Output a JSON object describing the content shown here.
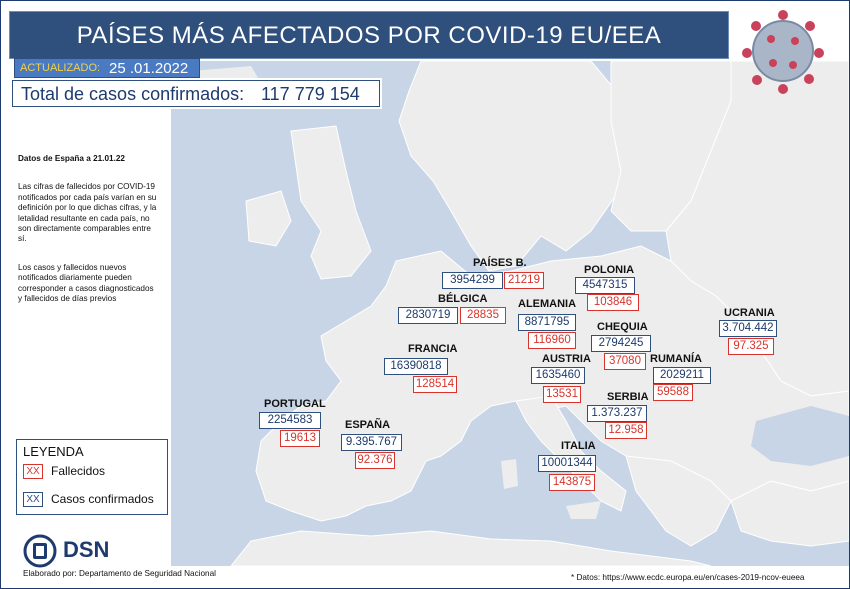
{
  "title": "PAÍSES MÁS AFECTADOS POR COVID-19 EU/EEA",
  "updated": {
    "label": "ACTUALIZADO:",
    "date": "25 .01.2022"
  },
  "total": {
    "label": "Total de casos confirmados:",
    "value": "117 779 154"
  },
  "notes": {
    "spain_date": "Datos de España a 21.01.22",
    "paragraph1": "Las cifras de fallecidos por COVID-19 notificados por cada país varían en su definición por lo que dichas cifras, y la letalidad resultante en cada país, no son directamente comparables entre sí.",
    "paragraph2": "Los casos y fallecidos nuevos notificados diariamente pueden corresponder a casos diagnosticados y fallecidos de días previos"
  },
  "legend": {
    "title": "LEYENDA",
    "deaths": {
      "sample": "XX",
      "label": "Fallecidos"
    },
    "cases": {
      "sample": "XX",
      "label": "Casos confirmados"
    }
  },
  "countries": {
    "paises_bajos": {
      "name": "PAÍSES B.",
      "cases": "3954299",
      "deaths": "21219"
    },
    "polonia": {
      "name": "POLONIA",
      "cases": "4547315",
      "deaths": "103846"
    },
    "belgica": {
      "name": "BÉLGICA",
      "cases": "2830719",
      "deaths": "28835"
    },
    "alemania": {
      "name": "ALEMANIA",
      "cases": "8871795",
      "deaths": "116960"
    },
    "chequia": {
      "name": "CHEQUIA",
      "cases": "2794245",
      "deaths": "37080"
    },
    "ucrania": {
      "name": "UCRANIA",
      "cases": "3.704.442",
      "deaths": "97.325"
    },
    "francia": {
      "name": "FRANCIA",
      "cases": "16390818",
      "deaths": "128514"
    },
    "austria": {
      "name": "AUSTRIA",
      "cases": "1635460",
      "deaths": "13531"
    },
    "rumania": {
      "name": "RUMANÍA",
      "cases": "2029211",
      "deaths": "59588"
    },
    "portugal": {
      "name": "PORTUGAL",
      "cases": "2254583",
      "deaths": "19613"
    },
    "serbia": {
      "name": "SERBIA",
      "cases": "1.373.237",
      "deaths": "12.958"
    },
    "espana": {
      "name": "ESPAÑA",
      "cases": "9.395.767",
      "deaths": "92.376"
    },
    "italia": {
      "name": "ITALIA",
      "cases": "10001344",
      "deaths": "143875"
    }
  },
  "logo": {
    "text": "DSN"
  },
  "credit": "Elaborado por: Departamento de Seguridad Nacional",
  "source": "* Datos: https://www.ecdc.europa.eu/en/cases-2019-ncov-eueea",
  "colors": {
    "header": "#2f4f7c",
    "land": "#ededed",
    "sea": "#c7d5e6",
    "deaths": "#d9342b",
    "cases": "#1e3a6e",
    "accent": "#f2d14a"
  }
}
